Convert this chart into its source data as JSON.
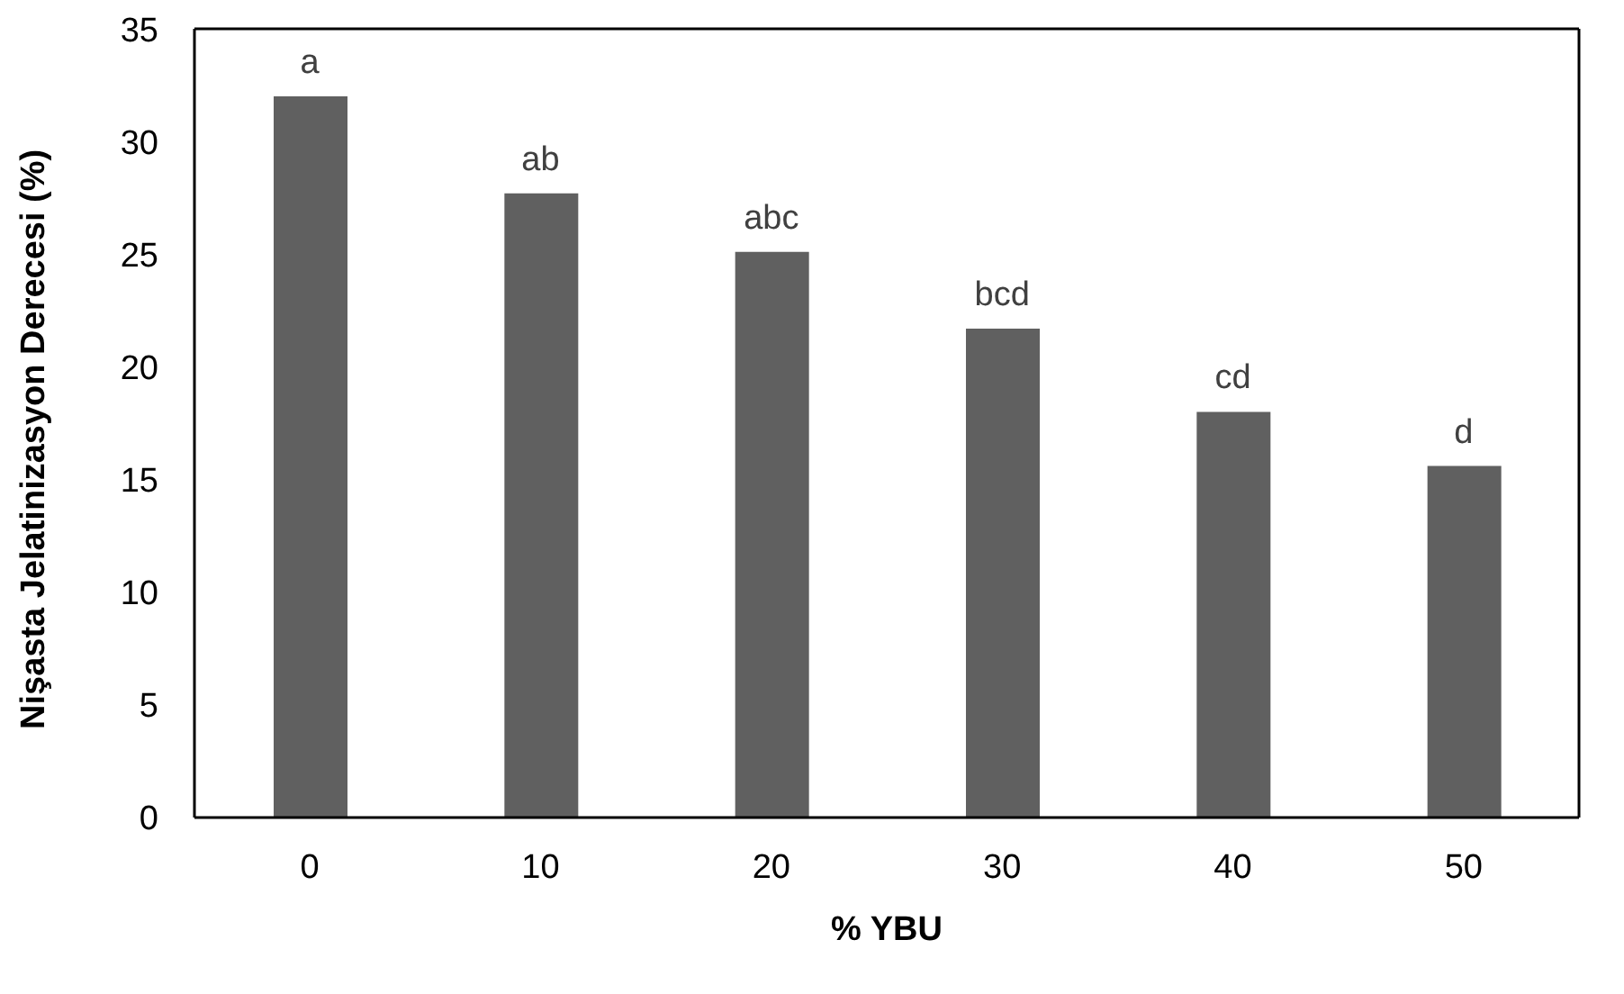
{
  "chart_data": {
    "type": "bar",
    "xlabel": "% YBU",
    "ylabel": "Nişasta Jelatinizasyon Derecesi (%)",
    "categories": [
      "0",
      "10",
      "20",
      "30",
      "40",
      "50"
    ],
    "values": [
      32.0,
      27.7,
      25.1,
      21.7,
      18.0,
      15.6
    ],
    "color": "#606060",
    "ylim": [
      0,
      35
    ],
    "yticks": [
      0,
      5,
      10,
      15,
      20,
      25,
      30,
      35
    ],
    "grid": false,
    "legend": false,
    "annotations": [
      {
        "text": "a",
        "x": "0",
        "y": 32.0
      },
      {
        "text": "ab",
        "x": "10",
        "y": 27.7
      },
      {
        "text": "abc",
        "x": "20",
        "y": 25.1
      },
      {
        "text": "bcd",
        "x": "30",
        "y": 21.7
      },
      {
        "text": "cd",
        "x": "40",
        "y": 18.0
      },
      {
        "text": "d",
        "x": "50",
        "y": 15.6
      }
    ]
  }
}
